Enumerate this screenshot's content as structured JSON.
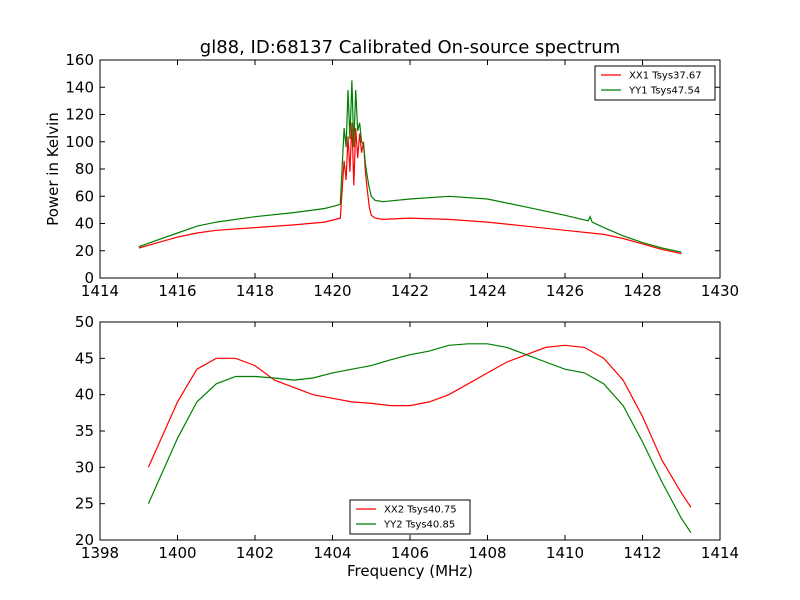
{
  "figure_title": "gl88, ID:68137 Calibrated On-source spectrum",
  "colors": {
    "red": "#ff0000",
    "green": "#007f00"
  },
  "chart_data": [
    {
      "type": "line",
      "title": "gl88, ID:68137 Calibrated On-source spectrum",
      "xlabel": "",
      "ylabel": "Power in Kelvin",
      "xlim": [
        1414,
        1430
      ],
      "ylim": [
        0,
        160
      ],
      "xticks": [
        1414,
        1416,
        1418,
        1420,
        1422,
        1424,
        1426,
        1428,
        1430
      ],
      "yticks": [
        0,
        20,
        40,
        60,
        80,
        100,
        120,
        140,
        160
      ],
      "grid": false,
      "legend": "top-right",
      "series": [
        {
          "name": "XX1 Tsys37.67",
          "color": "#ff0000",
          "x": [
            1415.0,
            1415.5,
            1416.0,
            1416.5,
            1417.0,
            1418.0,
            1419.0,
            1419.8,
            1420.2,
            1420.3,
            1420.35,
            1420.4,
            1420.45,
            1420.5,
            1420.55,
            1420.6,
            1420.65,
            1420.7,
            1420.75,
            1420.8,
            1420.85,
            1420.9,
            1420.95,
            1421.0,
            1421.1,
            1421.3,
            1422.0,
            1423.0,
            1424.0,
            1425.0,
            1426.0,
            1427.0,
            1427.5,
            1428.0,
            1428.5,
            1429.0
          ],
          "y": [
            22,
            26,
            30,
            33,
            35,
            37,
            39,
            41,
            44,
            86,
            72,
            104,
            78,
            114,
            68,
            110,
            88,
            106,
            92,
            100,
            78,
            64,
            52,
            46,
            44,
            43,
            44,
            43,
            41,
            38,
            35,
            32,
            29,
            25,
            21,
            18
          ]
        },
        {
          "name": "YY1 Tsys47.54",
          "color": "#007f00",
          "x": [
            1415.0,
            1415.5,
            1416.0,
            1416.5,
            1417.0,
            1418.0,
            1419.0,
            1419.8,
            1420.2,
            1420.3,
            1420.35,
            1420.4,
            1420.45,
            1420.5,
            1420.55,
            1420.6,
            1420.65,
            1420.7,
            1420.75,
            1420.8,
            1420.85,
            1420.9,
            1420.95,
            1421.0,
            1421.1,
            1421.3,
            1422.0,
            1423.0,
            1424.0,
            1425.0,
            1426.0,
            1426.6,
            1426.65,
            1426.7,
            1427.0,
            1427.5,
            1428.0,
            1428.5,
            1429.0
          ],
          "y": [
            23,
            28,
            33,
            38,
            41,
            45,
            48,
            51,
            54,
            110,
            96,
            138,
            102,
            145,
            96,
            138,
            108,
            114,
            100,
            98,
            84,
            74,
            66,
            60,
            57,
            56,
            58,
            60,
            58,
            52,
            46,
            42,
            45,
            41,
            37,
            31,
            26,
            22,
            19
          ]
        }
      ]
    },
    {
      "type": "line",
      "title": "",
      "xlabel": "Frequency (MHz)",
      "ylabel": "",
      "xlim": [
        1398,
        1414
      ],
      "ylim": [
        20,
        50
      ],
      "xticks": [
        1398,
        1400,
        1402,
        1404,
        1406,
        1408,
        1410,
        1412,
        1414
      ],
      "yticks": [
        20,
        25,
        30,
        35,
        40,
        45,
        50
      ],
      "grid": false,
      "legend": "bottom-center",
      "series": [
        {
          "name": "XX2 Tsys40.75",
          "color": "#ff0000",
          "x": [
            1399.25,
            1399.5,
            1400.0,
            1400.5,
            1401.0,
            1401.5,
            1402.0,
            1402.5,
            1403.0,
            1403.5,
            1404.0,
            1404.5,
            1405.0,
            1405.5,
            1406.0,
            1406.5,
            1407.0,
            1407.5,
            1408.0,
            1408.5,
            1409.0,
            1409.5,
            1410.0,
            1410.5,
            1411.0,
            1411.5,
            1412.0,
            1412.5,
            1413.0,
            1413.25
          ],
          "y": [
            30,
            33,
            39,
            43.5,
            45,
            45,
            44,
            42,
            41,
            40,
            39.5,
            39,
            38.8,
            38.5,
            38.5,
            39,
            40,
            41.5,
            43,
            44.5,
            45.5,
            46.5,
            46.8,
            46.5,
            45,
            42,
            37,
            31,
            26.5,
            24.5
          ]
        },
        {
          "name": "YY2 Tsys40.85",
          "color": "#007f00",
          "x": [
            1399.25,
            1399.5,
            1400.0,
            1400.5,
            1401.0,
            1401.5,
            1402.0,
            1402.5,
            1403.0,
            1403.5,
            1404.0,
            1404.5,
            1405.0,
            1405.5,
            1406.0,
            1406.5,
            1407.0,
            1407.5,
            1408.0,
            1408.5,
            1409.0,
            1409.5,
            1410.0,
            1410.5,
            1411.0,
            1411.5,
            1412.0,
            1412.5,
            1413.0,
            1413.25
          ],
          "y": [
            25,
            28,
            34,
            39,
            41.5,
            42.5,
            42.5,
            42.3,
            42,
            42.3,
            43,
            43.5,
            44,
            44.8,
            45.5,
            46,
            46.8,
            47,
            47,
            46.5,
            45.5,
            44.5,
            43.5,
            43,
            41.5,
            38.5,
            33.5,
            28,
            23,
            21
          ]
        }
      ]
    }
  ]
}
